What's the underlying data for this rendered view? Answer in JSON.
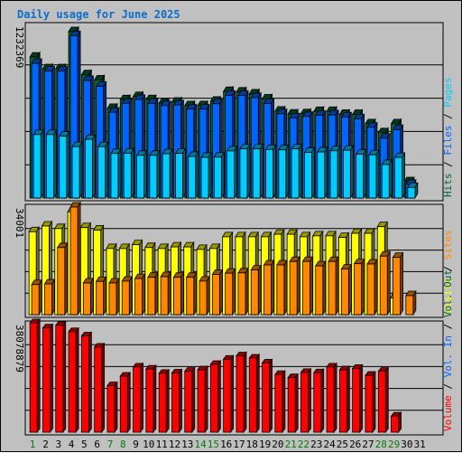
{
  "colors": {
    "hits": "#006633",
    "files": "#0066ff",
    "pages": "#00ccff",
    "visits": "#ffff00",
    "sites": "#ff8800",
    "kbytes": "#ff0000",
    "panel": "#c0c0c0",
    "weekday_label": "#000000",
    "weekend_label": "#008000"
  },
  "chart_data": {
    "type": "bar",
    "title": "Daily usage for June 2025",
    "categories": [
      "1",
      "2",
      "3",
      "4",
      "5",
      "6",
      "7",
      "8",
      "9",
      "10",
      "11",
      "12",
      "13",
      "14",
      "15",
      "16",
      "17",
      "18",
      "19",
      "20",
      "21",
      "22",
      "23",
      "24",
      "25",
      "26",
      "27",
      "28",
      "29",
      "30",
      "31"
    ],
    "weekend_days": [
      "1",
      "7",
      "8",
      "14",
      "15",
      "21",
      "22",
      "28",
      "29"
    ],
    "panels": [
      {
        "id": "top",
        "ylim": [
          0,
          1232369
        ],
        "max_label": "1232369",
        "axis_label_parts": [
          {
            "text": "Hits",
            "series": "hits"
          },
          {
            "text": " / ",
            "series": null
          },
          {
            "text": "Files",
            "series": "files"
          },
          {
            "text": " / ",
            "series": null
          },
          {
            "text": "Pages",
            "series": "pages"
          }
        ],
        "series": [
          {
            "name": "Hits",
            "key": "hits",
            "values": [
              1044000,
              958000,
              958000,
              1232369,
              913000,
              875000,
              664000,
              728000,
              752000,
              728000,
              703000,
              710000,
              684000,
              684000,
              717000,
              789000,
              785000,
              771000,
              734000,
              644000,
              622000,
              624000,
              641000,
              641000,
              620000,
              619000,
              550000,
              484000,
              550000,
              120000,
              null
            ]
          },
          {
            "name": "Files",
            "key": "files",
            "values": [
              997000,
              940000,
              940000,
              1201000,
              870000,
              827000,
              635000,
              701000,
              730000,
              701000,
              684000,
              689000,
              659000,
              659000,
              698000,
              760000,
              760000,
              743000,
              701000,
              624000,
              593000,
              604000,
              612000,
              615000,
              600000,
              586000,
              524000,
              443000,
              507000,
              101000,
              null
            ]
          },
          {
            "name": "Pages",
            "key": "pages",
            "values": [
              470000,
              470000,
              458000,
              380000,
              434000,
              380000,
              330000,
              332000,
              316000,
              316000,
              328000,
              331000,
              308000,
              301000,
              303000,
              349000,
              364000,
              364000,
              359000,
              357000,
              364000,
              338000,
              341000,
              350000,
              354000,
              324000,
              320000,
              248000,
              300000,
              78000,
              null
            ]
          }
        ]
      },
      {
        "id": "middle",
        "ylim": [
          0,
          34001
        ],
        "max_label": "34001",
        "axis_label_parts": [
          {
            "text": "Visits",
            "series": "visits"
          },
          {
            "text": " / ",
            "series": null
          },
          {
            "text": "Sites",
            "series": "sites"
          }
        ],
        "series": [
          {
            "name": "Visits",
            "key": "visits",
            "values": [
              26200,
              28000,
              27200,
              32500,
              27500,
              26700,
              20900,
              20900,
              22100,
              21200,
              20900,
              21400,
              21400,
              20600,
              20900,
              24600,
              24600,
              24600,
              24600,
              25400,
              25400,
              24600,
              24900,
              24900,
              24400,
              25700,
              25700,
              27800,
              5300,
              null,
              null
            ]
          },
          {
            "name": "Sites",
            "key": "sites",
            "values": [
              9500,
              9700,
              21200,
              34001,
              10000,
              10500,
              10000,
              10600,
              11400,
              11800,
              12000,
              11800,
              11800,
              10600,
              12700,
              13100,
              13200,
              14100,
              15700,
              15700,
              16800,
              16800,
              15400,
              16800,
              14400,
              16100,
              16000,
              18500,
              18100,
              6000,
              null
            ]
          }
        ]
      },
      {
        "id": "bottom",
        "ylim": [
          0,
          38078879
        ],
        "max_label": "38078879",
        "axis_label_parts": [
          {
            "text": "Volume",
            "series": "kbytes"
          },
          {
            "text": " / ",
            "series": null
          },
          {
            "text": "Vol. In",
            "series": "files"
          },
          {
            "text": " / ",
            "series": null
          },
          {
            "text": "Vol. Out",
            "series": "hits"
          }
        ],
        "series": [
          {
            "name": "Volume",
            "key": "kbytes",
            "values": [
              38078879,
              36300000,
              37200000,
              35000000,
              33500000,
              29600000,
              16200000,
              19500000,
              22700000,
              22000000,
              20500000,
              20600000,
              21200000,
              21700000,
              23600000,
              25400000,
              26600000,
              25800000,
              24100000,
              20100000,
              19000000,
              20800000,
              20700000,
              22700000,
              21700000,
              22200000,
              19800000,
              21200000,
              5600000,
              null,
              null
            ]
          }
        ]
      }
    ]
  }
}
